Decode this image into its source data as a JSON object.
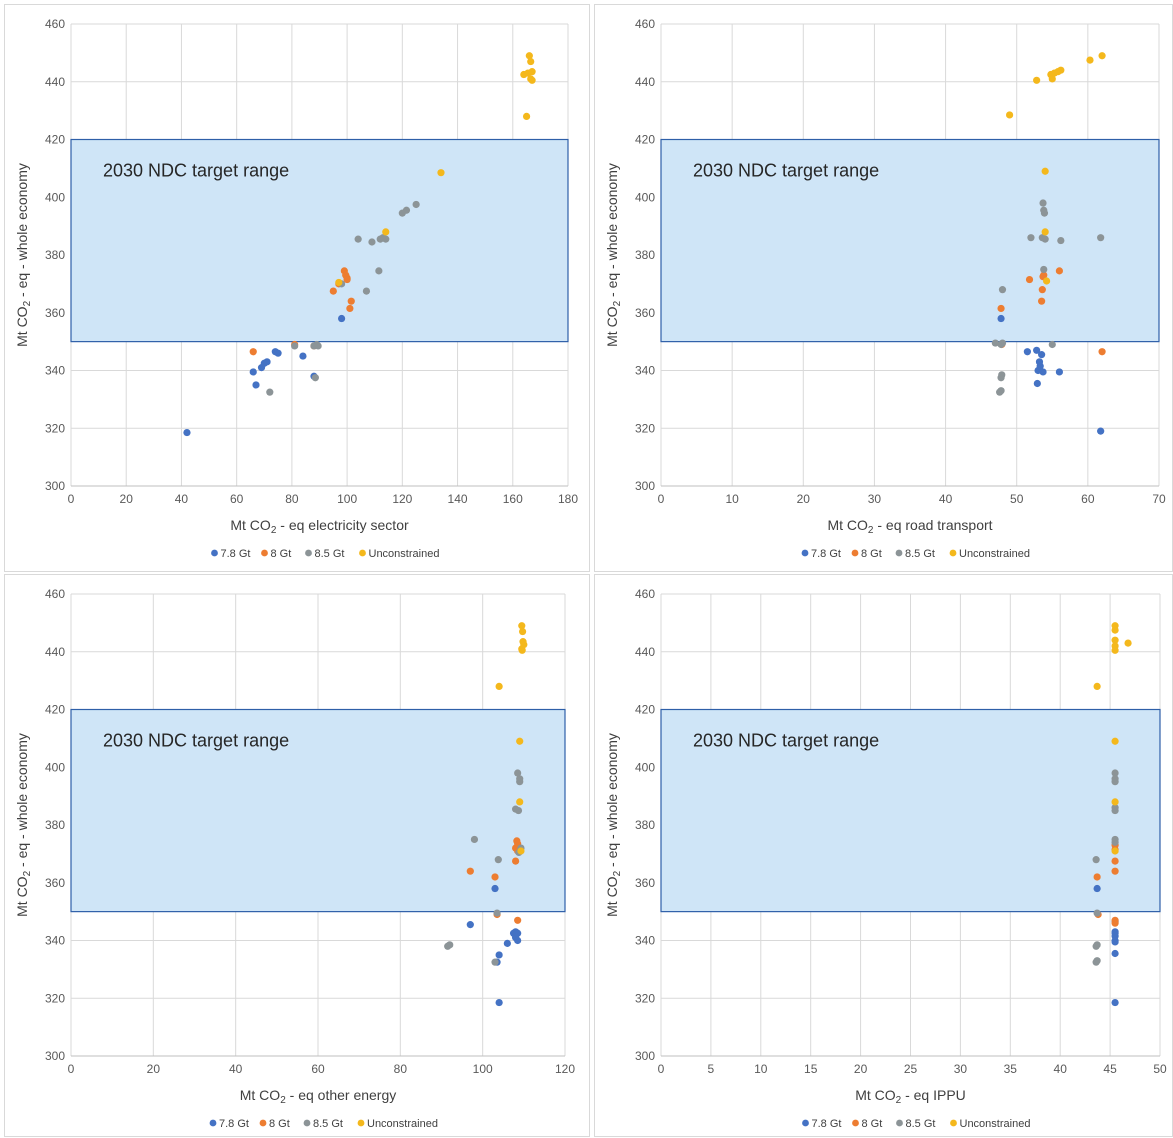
{
  "colors": {
    "7.8 Gt": "#4472c4",
    "8 Gt": "#ed7d31",
    "8.5 Gt": "#8c9497",
    "Unconstrained": "#f4b81c",
    "band_fill": "#cfe5f7",
    "band_stroke": "#2e5fa8",
    "grid": "#d9d9d9"
  },
  "band_label": "2030 NDC target range",
  "ylabel_main": "Mt CO",
  "ylabel_sub": "2",
  "ylabel_rest": " - eq - whole economy",
  "legend": [
    "7.8 Gt",
    "8 Gt",
    "8.5 Gt",
    "Unconstrained"
  ],
  "chart_data": [
    {
      "type": "scatter",
      "xlabel_main": "Mt CO",
      "xlabel_sub": "2",
      "xlabel_rest": " - eq electricity sector",
      "xlim": [
        0,
        180
      ],
      "xticks": [
        0,
        20,
        40,
        60,
        80,
        100,
        120,
        140,
        160,
        180
      ],
      "ylim": [
        300,
        460
      ],
      "yticks": [
        300,
        320,
        340,
        360,
        380,
        400,
        420,
        440,
        460
      ],
      "band": [
        350,
        420
      ],
      "series": [
        {
          "name": "7.8 Gt",
          "points": [
            [
              42,
              318.5
            ],
            [
              66,
              339.5
            ],
            [
              67,
              335
            ],
            [
              69,
              341
            ],
            [
              70,
              342.5
            ],
            [
              71,
              343
            ],
            [
              74,
              346.5
            ],
            [
              75,
              346
            ],
            [
              84,
              345
            ],
            [
              88,
              338
            ],
            [
              98,
              358
            ]
          ]
        },
        {
          "name": "8 Gt",
          "points": [
            [
              66,
              346.5
            ],
            [
              81,
              349
            ],
            [
              95,
              367.5
            ],
            [
              97,
              370
            ],
            [
              99,
              374.5
            ],
            [
              99.5,
              373
            ],
            [
              100,
              372
            ],
            [
              100,
              371.5
            ],
            [
              101,
              361.5
            ],
            [
              101.5,
              364
            ],
            [
              88,
              348.5
            ]
          ]
        },
        {
          "name": "8.5 Gt",
          "points": [
            [
              72,
              332.5
            ],
            [
              81,
              348.5
            ],
            [
              88,
              348.5
            ],
            [
              88.5,
              337.5
            ],
            [
              89,
              349
            ],
            [
              98,
              370
            ],
            [
              104,
              385.5
            ],
            [
              107,
              367.5
            ],
            [
              109,
              384.5
            ],
            [
              111.5,
              374.5
            ],
            [
              112,
              385.5
            ],
            [
              113,
              386
            ],
            [
              114,
              385.5
            ],
            [
              120,
              394.5
            ],
            [
              121.5,
              395.5
            ],
            [
              125,
              397.5
            ],
            [
              89.5,
              348.5
            ]
          ]
        },
        {
          "name": "Unconstrained",
          "points": [
            [
              97,
              370.5
            ],
            [
              114,
              388
            ],
            [
              134,
              408.5
            ],
            [
              164,
              442.5
            ],
            [
              165,
              428
            ],
            [
              165.5,
              443
            ],
            [
              166,
              449
            ],
            [
              166.5,
              447
            ],
            [
              166.5,
              441
            ],
            [
              167,
              443.5
            ],
            [
              167,
              440.5
            ]
          ]
        }
      ]
    },
    {
      "type": "scatter",
      "xlabel_main": "Mt CO",
      "xlabel_sub": "2",
      "xlabel_rest": " - eq road transport",
      "xlim": [
        0,
        70
      ],
      "xticks": [
        0,
        10,
        20,
        30,
        40,
        50,
        60,
        70
      ],
      "ylim": [
        300,
        460
      ],
      "yticks": [
        300,
        320,
        340,
        360,
        380,
        400,
        420,
        440,
        460
      ],
      "band": [
        350,
        420
      ],
      "series": [
        {
          "name": "7.8 Gt",
          "points": [
            [
              47.8,
              358
            ],
            [
              51.5,
              346.5
            ],
            [
              52.8,
              347
            ],
            [
              52.9,
              335.5
            ],
            [
              53,
              340
            ],
            [
              53.3,
              341.5
            ],
            [
              53.5,
              345.5
            ],
            [
              53.7,
              339.5
            ],
            [
              56,
              339.5
            ],
            [
              61.8,
              319
            ],
            [
              53.2,
              343
            ]
          ]
        },
        {
          "name": "8 Gt",
          "points": [
            [
              47.8,
              361.5
            ],
            [
              51.8,
              371.5
            ],
            [
              53.5,
              364
            ],
            [
              53.6,
              368
            ],
            [
              53.7,
              372.5
            ],
            [
              53.8,
              373
            ],
            [
              56,
              374.5
            ],
            [
              62,
              346.5
            ],
            [
              47.9,
              349
            ]
          ]
        },
        {
          "name": "8.5 Gt",
          "points": [
            [
              47,
              349.5
            ],
            [
              47.8,
              349
            ],
            [
              48,
              349.5
            ],
            [
              47.8,
              337.5
            ],
            [
              47.9,
              338.5
            ],
            [
              47.6,
              332.5
            ],
            [
              47.8,
              333
            ],
            [
              48,
              368
            ],
            [
              52,
              386
            ],
            [
              53.6,
              386
            ],
            [
              53.7,
              398
            ],
            [
              53.8,
              395.5
            ],
            [
              53.9,
              394.5
            ],
            [
              53.8,
              375
            ],
            [
              54,
              385.5
            ],
            [
              55,
              349
            ],
            [
              56.2,
              385
            ],
            [
              61.8,
              386
            ]
          ]
        },
        {
          "name": "Unconstrained",
          "points": [
            [
              49,
              428.5
            ],
            [
              52.8,
              440.5
            ],
            [
              54,
              409
            ],
            [
              54,
              388
            ],
            [
              54.2,
              371
            ],
            [
              54.8,
              442.5
            ],
            [
              55,
              441
            ],
            [
              55.3,
              443
            ],
            [
              55.8,
              443.5
            ],
            [
              56.2,
              444
            ],
            [
              60.3,
              447.5
            ],
            [
              62,
              449
            ]
          ]
        }
      ]
    },
    {
      "type": "scatter",
      "xlabel_main": "Mt CO",
      "xlabel_sub": "2",
      "xlabel_rest": " - eq other energy",
      "xlim": [
        0,
        120
      ],
      "xticks": [
        0,
        20,
        40,
        60,
        80,
        100,
        120
      ],
      "ylim": [
        300,
        460
      ],
      "yticks": [
        300,
        320,
        340,
        360,
        380,
        400,
        420,
        440,
        460
      ],
      "band": [
        350,
        420
      ],
      "series": [
        {
          "name": "7.8 Gt",
          "points": [
            [
              97,
              345.5
            ],
            [
              103,
              358
            ],
            [
              104,
              335
            ],
            [
              104,
              318.5
            ],
            [
              106,
              339
            ],
            [
              107.5,
              342.5
            ],
            [
              108,
              341
            ],
            [
              108,
              343
            ],
            [
              108.5,
              340
            ],
            [
              108.5,
              342.5
            ],
            [
              103.5,
              332.5
            ]
          ]
        },
        {
          "name": "8 Gt",
          "points": [
            [
              97,
              364
            ],
            [
              103,
              362
            ],
            [
              103.5,
              349
            ],
            [
              108,
              367.5
            ],
            [
              108,
              372
            ],
            [
              108.3,
              374.5
            ],
            [
              108.5,
              371
            ],
            [
              108.5,
              373.5
            ],
            [
              108.5,
              347
            ]
          ]
        },
        {
          "name": "8.5 Gt",
          "points": [
            [
              91.5,
              338
            ],
            [
              92,
              338.5
            ],
            [
              98,
              375
            ],
            [
              103,
              332.5
            ],
            [
              103.5,
              349.5
            ],
            [
              103.8,
              368
            ],
            [
              108,
              385.5
            ],
            [
              108.5,
              398
            ],
            [
              108.7,
              385
            ],
            [
              109,
              396
            ],
            [
              109,
              395
            ],
            [
              109.3,
              372
            ],
            [
              108.8,
              370.5
            ]
          ]
        },
        {
          "name": "Unconstrained",
          "points": [
            [
              104,
              428
            ],
            [
              109,
              409
            ],
            [
              109,
              388
            ],
            [
              109.3,
              371
            ],
            [
              109.5,
              441
            ],
            [
              109.5,
              449
            ],
            [
              109.7,
              447
            ],
            [
              109.8,
              443.5
            ],
            [
              110,
              442.5
            ],
            [
              109.6,
              440.5
            ]
          ]
        }
      ]
    },
    {
      "type": "scatter",
      "xlabel_main": "Mt CO",
      "xlabel_sub": "2",
      "xlabel_rest": " - eq IPPU",
      "xlim": [
        0,
        50
      ],
      "xticks": [
        0,
        5,
        10,
        15,
        20,
        25,
        30,
        35,
        40,
        45,
        50
      ],
      "ylim": [
        300,
        460
      ],
      "yticks": [
        300,
        320,
        340,
        360,
        380,
        400,
        420,
        440,
        460
      ],
      "band": [
        350,
        420
      ],
      "series": [
        {
          "name": "7.8 Gt",
          "points": [
            [
              43.7,
              358
            ],
            [
              45.5,
              346.5
            ],
            [
              45.5,
              343
            ],
            [
              45.5,
              341.5
            ],
            [
              45.5,
              340
            ],
            [
              45.5,
              339.5
            ],
            [
              45.5,
              335.5
            ],
            [
              45.5,
              318.5
            ],
            [
              45.5,
              342.5
            ]
          ]
        },
        {
          "name": "8 Gt",
          "points": [
            [
              43.7,
              362
            ],
            [
              43.8,
              349
            ],
            [
              45.5,
              364
            ],
            [
              45.5,
              367.5
            ],
            [
              45.5,
              371.5
            ],
            [
              45.5,
              373
            ],
            [
              45.5,
              347
            ],
            [
              45.5,
              346
            ]
          ]
        },
        {
          "name": "8.5 Gt",
          "points": [
            [
              43.6,
              368
            ],
            [
              43.7,
              349.5
            ],
            [
              43.7,
              338.5
            ],
            [
              43.6,
              338
            ],
            [
              43.6,
              332.5
            ],
            [
              43.7,
              333
            ],
            [
              45.5,
              398
            ],
            [
              45.5,
              396
            ],
            [
              45.5,
              395
            ],
            [
              45.5,
              386
            ],
            [
              45.5,
              385
            ],
            [
              45.5,
              375
            ],
            [
              45.5,
              374
            ]
          ]
        },
        {
          "name": "Unconstrained",
          "points": [
            [
              43.7,
              428
            ],
            [
              45.5,
              409
            ],
            [
              45.5,
              388
            ],
            [
              45.5,
              371
            ],
            [
              45.5,
              449
            ],
            [
              45.5,
              447.5
            ],
            [
              45.5,
              444
            ],
            [
              45.5,
              442
            ],
            [
              45.5,
              440.5
            ],
            [
              46.8,
              443
            ]
          ]
        }
      ]
    }
  ]
}
